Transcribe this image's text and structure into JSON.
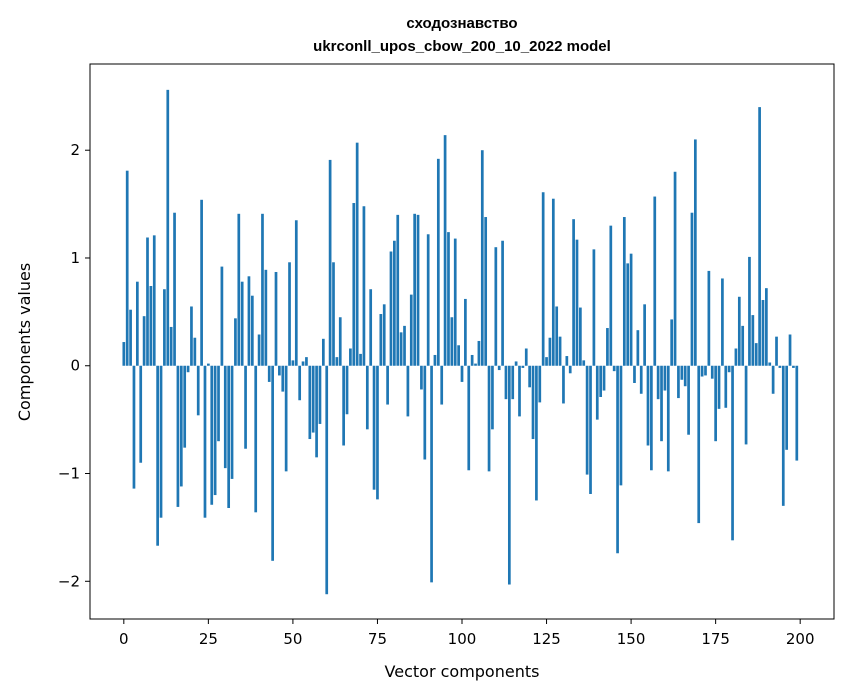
{
  "chart_data": {
    "type": "bar",
    "title_line1": "сходознавство",
    "title_line2": "ukrconll_upos_cbow_200_10_2022 model",
    "xlabel": "Vector components",
    "ylabel": "Components values",
    "xlim": [
      -10,
      210
    ],
    "ylim": [
      -2.35,
      2.8
    ],
    "x_ticks": [
      0,
      25,
      50,
      75,
      100,
      125,
      150,
      175,
      200
    ],
    "x_tick_labels": [
      "0",
      "25",
      "50",
      "75",
      "100",
      "125",
      "150",
      "175",
      "200"
    ],
    "y_ticks": [
      -2,
      -1,
      0,
      1,
      2
    ],
    "y_tick_labels": [
      "−2",
      "−1",
      "0",
      "1",
      "2"
    ],
    "bar_color": "#1f77b4",
    "grid": false,
    "values": [
      0.22,
      1.81,
      0.52,
      -1.14,
      0.78,
      -0.9,
      0.46,
      1.19,
      0.74,
      1.21,
      -1.67,
      -1.41,
      0.71,
      2.56,
      0.36,
      1.42,
      -1.31,
      -1.12,
      -0.76,
      -0.06,
      0.55,
      0.26,
      -0.46,
      1.54,
      -1.41,
      0.02,
      -1.29,
      -1.2,
      -0.7,
      0.92,
      -0.95,
      -1.32,
      -1.05,
      0.44,
      1.41,
      0.78,
      -0.77,
      0.83,
      0.65,
      -1.36,
      0.29,
      1.41,
      0.89,
      -0.15,
      -1.81,
      0.87,
      -0.09,
      -0.24,
      -0.98,
      0.96,
      0.05,
      1.35,
      -0.32,
      0.04,
      0.08,
      -0.68,
      -0.62,
      -0.85,
      -0.54,
      0.25,
      -2.12,
      1.91,
      0.96,
      0.08,
      0.45,
      -0.74,
      -0.45,
      0.16,
      1.51,
      2.07,
      0.11,
      1.48,
      -0.59,
      0.71,
      -1.15,
      -1.24,
      0.48,
      0.57,
      -0.36,
      1.06,
      1.16,
      1.4,
      0.31,
      0.37,
      -0.47,
      0.66,
      1.41,
      1.4,
      -0.22,
      -0.87,
      1.22,
      -2.01,
      0.1,
      1.92,
      -0.36,
      2.14,
      1.24,
      0.45,
      1.18,
      0.19,
      -0.15,
      0.62,
      -0.97,
      0.1,
      0.02,
      0.23,
      2.0,
      1.38,
      -0.98,
      -0.59,
      1.1,
      -0.04,
      1.16,
      -0.31,
      -2.03,
      -0.31,
      0.04,
      -0.47,
      -0.02,
      0.16,
      -0.2,
      -0.68,
      -1.25,
      -0.34,
      1.61,
      0.08,
      0.26,
      1.55,
      0.55,
      0.27,
      -0.35,
      0.09,
      -0.07,
      1.36,
      1.17,
      0.54,
      0.05,
      -1.01,
      -1.19,
      1.08,
      -0.5,
      -0.29,
      -0.23,
      0.35,
      1.3,
      -0.05,
      -1.74,
      -1.11,
      1.38,
      0.95,
      1.04,
      -0.16,
      0.33,
      -0.26,
      0.57,
      -0.74,
      -0.97,
      1.57,
      -0.31,
      -0.7,
      -0.23,
      -0.98,
      0.43,
      1.8,
      -0.3,
      -0.13,
      -0.19,
      -0.64,
      1.42,
      2.1,
      -1.46,
      -0.1,
      -0.09,
      0.88,
      -0.12,
      -0.7,
      -0.4,
      0.81,
      -0.39,
      -0.06,
      -1.62,
      0.16,
      0.64,
      0.37,
      -0.73,
      1.01,
      0.47,
      0.21,
      2.4,
      0.61,
      0.72,
      0.03,
      -0.26,
      0.27,
      -0.02,
      -1.3,
      -0.78,
      0.29,
      -0.02,
      -0.88
    ]
  }
}
